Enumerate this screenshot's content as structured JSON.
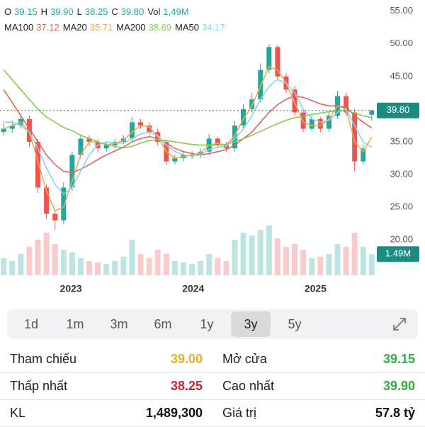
{
  "chart_data": {
    "type": "candlestick",
    "x": [
      2022.45,
      2022.52,
      2022.59,
      2022.66,
      2022.73,
      2022.8,
      2022.87,
      2022.94,
      2023.01,
      2023.08,
      2023.15,
      2023.22,
      2023.29,
      2023.36,
      2023.43,
      2023.5,
      2023.57,
      2023.64,
      2023.71,
      2023.78,
      2023.85,
      2023.92,
      2023.99,
      2024.06,
      2024.13,
      2024.2,
      2024.27,
      2024.34,
      2024.41,
      2024.48,
      2024.55,
      2024.62,
      2024.69,
      2024.76,
      2024.83,
      2024.9,
      2024.97,
      2025.04,
      2025.11,
      2025.18,
      2025.25,
      2025.32,
      2025.39,
      2025.46
    ],
    "open": [
      36.5,
      37,
      37.5,
      38.5,
      35,
      28,
      24,
      23,
      28,
      33,
      35.5,
      35,
      34,
      34.5,
      35,
      35.5,
      38,
      37.5,
      36.5,
      35,
      32,
      32.5,
      33,
      33,
      33.5,
      35.5,
      34.5,
      34,
      37.5,
      40,
      41.5,
      46,
      49.5,
      45,
      43,
      39.5,
      37,
      38.5,
      37,
      39,
      42,
      39.5,
      32,
      39.15
    ],
    "high": [
      37.8,
      38.3,
      39.2,
      39,
      35.5,
      28.5,
      24.5,
      28.8,
      33.5,
      36.2,
      36,
      35.4,
      35,
      35.5,
      36,
      38.8,
      38.5,
      38,
      37,
      35.3,
      33,
      33.5,
      33.6,
      34,
      36.2,
      35.8,
      35,
      38.2,
      40.8,
      42.5,
      47,
      50,
      49.8,
      45.5,
      43.5,
      40,
      39,
      38.8,
      39.6,
      42.8,
      42.5,
      40,
      34.6,
      39.9
    ],
    "low": [
      36,
      36.4,
      37,
      34.2,
      27.2,
      23.2,
      21.5,
      22.5,
      27.5,
      32.5,
      34.4,
      33.4,
      33.5,
      34,
      34.6,
      35,
      37,
      36,
      34.4,
      31.5,
      31.6,
      32,
      32.4,
      32.5,
      33,
      34,
      33.5,
      33.5,
      37,
      39.5,
      41,
      45.5,
      44.5,
      42.5,
      39,
      36.5,
      36.6,
      36.5,
      36.5,
      38.5,
      39,
      30.5,
      31.5,
      38.25
    ],
    "close": [
      37,
      37.5,
      38.5,
      35,
      28,
      24,
      23,
      28,
      33,
      35.5,
      35,
      34,
      34.5,
      35,
      35.5,
      38,
      37.5,
      36.5,
      35,
      32,
      32.5,
      33,
      33,
      33.5,
      35.5,
      34.5,
      34,
      37.5,
      40,
      41.5,
      46,
      49.5,
      45,
      43,
      39.5,
      37,
      38.5,
      37,
      39,
      42,
      39.5,
      32,
      34,
      39.8
    ],
    "up_color": "#26a69a",
    "down_color": "#ef5350",
    "series": [
      {
        "name": "MA100",
        "legend_value": "37.12",
        "color": "#e0645a",
        "values": [
          43,
          41,
          39,
          37,
          35,
          33,
          31.5,
          30.5,
          30.3,
          30.8,
          31.5,
          32.3,
          33,
          33.6,
          34.2,
          35,
          35.5,
          35.8,
          35.5,
          34.8,
          34,
          33.5,
          33.2,
          33,
          33.2,
          33.5,
          33.8,
          34.5,
          35.5,
          36.5,
          38,
          39.5,
          40.7,
          41.5,
          42,
          41.8,
          41.3,
          40.8,
          40.5,
          40.5,
          40.3,
          39,
          38,
          37.12
        ]
      },
      {
        "name": "MA20",
        "legend_value": "35.71",
        "color": "#f0a94a",
        "values": [
          37,
          37.5,
          38,
          36.5,
          32,
          27.5,
          24.5,
          25,
          29,
          33,
          35,
          35,
          34.5,
          34.8,
          35.2,
          36.5,
          37.5,
          37.3,
          35.8,
          33.5,
          32.5,
          32.7,
          33,
          33.3,
          34.5,
          34.8,
          34.5,
          36,
          38.5,
          40.5,
          43.5,
          46.5,
          46,
          44,
          41,
          38,
          37.5,
          37.5,
          38.5,
          40.5,
          40,
          35,
          33.5,
          35.71
        ]
      },
      {
        "name": "MA200",
        "legend_value": "38.69",
        "color": "#86c94f",
        "values": [
          46,
          44.5,
          43,
          41.5,
          40,
          38.8,
          38,
          37.2,
          36.7,
          36,
          35.5,
          35,
          34.6,
          34.3,
          34.1,
          34.3,
          34.8,
          35.2,
          35.3,
          35.2,
          35,
          34.8,
          34.6,
          34.5,
          34.5,
          34.5,
          34.6,
          35,
          35.5,
          36,
          36.6,
          37.2,
          37.8,
          38.3,
          38.7,
          38.9,
          39.2,
          39.4,
          39.6,
          39.8,
          39.8,
          39.4,
          39,
          38.69
        ]
      },
      {
        "name": "MA50",
        "legend_value": "34.17",
        "color": "#86d3ee",
        "values": [
          38,
          38,
          37.5,
          36.5,
          34,
          31,
          28.5,
          27,
          28,
          30.5,
          33,
          34.5,
          35,
          34.8,
          34.8,
          35.5,
          36.2,
          36.5,
          36,
          34.5,
          33.5,
          33,
          32.8,
          33,
          33.8,
          34.2,
          34.3,
          35.5,
          37,
          39,
          41.5,
          43.5,
          44.5,
          44,
          42.5,
          40,
          38.5,
          38,
          38.3,
          39.5,
          40,
          37.5,
          35,
          34.17
        ]
      }
    ],
    "volume": {
      "values": [
        1.2,
        1.0,
        1.5,
        2.0,
        2.5,
        3.0,
        2.2,
        1.8,
        1.6,
        1.2,
        1.0,
        0.9,
        0.8,
        1.0,
        1.3,
        2.5,
        1.5,
        1.2,
        1.8,
        1.5,
        1.0,
        0.9,
        0.8,
        1.0,
        1.5,
        1.2,
        1.0,
        2.5,
        3.0,
        2.8,
        3.2,
        3.5,
        2.6,
        2.0,
        2.2,
        1.8,
        1.2,
        1.3,
        1.5,
        2.2,
        2.0,
        3.0,
        2.0,
        1.49
      ],
      "vlim": [
        0,
        5.5
      ],
      "last_label": "1.49M"
    },
    "xlim": [
      2022.42,
      2025.49
    ],
    "xticks": [
      2023,
      2024,
      2025
    ],
    "ylim": [
      14.6,
      56.7
    ],
    "yticks": [
      {
        "value": 20,
        "label": "20.00"
      },
      {
        "value": 25,
        "label": "25.00"
      },
      {
        "value": 30,
        "label": "30.00"
      },
      {
        "value": 35,
        "label": "35.00"
      },
      {
        "value": 40,
        "label": "40.00"
      },
      {
        "value": 45,
        "label": "45.00"
      },
      {
        "value": 50,
        "label": "50.00"
      },
      {
        "value": 55,
        "label": "55.00"
      }
    ],
    "last_price": {
      "value": 39.8,
      "label": "39.80"
    },
    "quote": [
      {
        "label": "O",
        "value": "39.15"
      },
      {
        "label": "H",
        "value": "39.90"
      },
      {
        "label": "L",
        "value": "38.25"
      },
      {
        "label": "C",
        "value": "39.80"
      },
      {
        "label": "Vol",
        "value": "1,49M"
      }
    ],
    "quote_color": "#26a69a"
  },
  "ranges": {
    "options": [
      "1d",
      "1m",
      "3m",
      "6m",
      "1y",
      "3y",
      "5y"
    ],
    "selected": 5
  },
  "stats": [
    {
      "label": "Tham chiếu",
      "value": "39.00",
      "color": "#e6b022"
    },
    {
      "label": "Mở cửa",
      "value": "39.15",
      "color": "#2eae3e"
    },
    {
      "label": "Thấp nhất",
      "value": "38.25",
      "color": "#c0282d"
    },
    {
      "label": "Cao nhất",
      "value": "39.90",
      "color": "#2eae3e"
    },
    {
      "label": "KL",
      "value": "1,489,300",
      "color": "#111111"
    },
    {
      "label": "Giá trị",
      "value": "57.8 tỷ",
      "color": "#111111"
    }
  ]
}
